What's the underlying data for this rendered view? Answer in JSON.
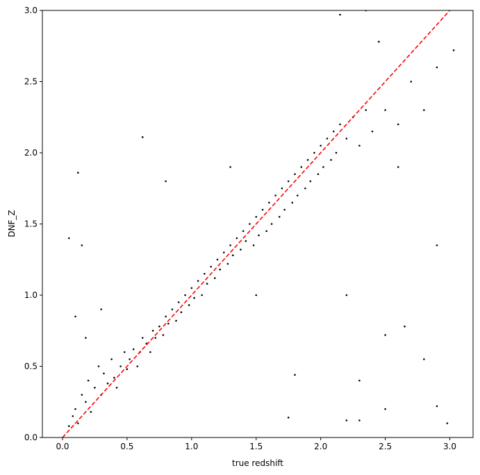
{
  "chart_data": {
    "type": "scatter",
    "x_label": "true redshift",
    "y_label": "DNF_Z",
    "xlim": [
      -0.156,
      3.18
    ],
    "ylim": [
      0,
      3
    ],
    "xticks": [
      {
        "value": 0,
        "label": "0.0"
      },
      0.5,
      {
        "value": 1,
        "label": "1.0"
      },
      1.5,
      {
        "value": 2,
        "label": "2.0"
      },
      2.5,
      {
        "value": 3,
        "label": "3.0"
      }
    ],
    "yticks": [
      {
        "value": 0,
        "label": "0.0"
      },
      0.5,
      {
        "value": 1,
        "label": "1.0"
      },
      1.5,
      {
        "value": 2,
        "label": "2.0"
      },
      2.5,
      {
        "value": 3,
        "label": "3.0"
      }
    ],
    "color": "#000000",
    "x": [
      0.05,
      0.08,
      0.1,
      0.12,
      0.15,
      0.18,
      0.2,
      0.22,
      0.25,
      0.28,
      0.3,
      0.32,
      0.35,
      0.38,
      0.4,
      0.42,
      0.45,
      0.48,
      0.5,
      0.52,
      0.55,
      0.58,
      0.6,
      0.62,
      0.65,
      0.68,
      0.7,
      0.72,
      0.75,
      0.78,
      0.8,
      0.82,
      0.85,
      0.88,
      0.9,
      0.92,
      0.95,
      0.98,
      1.0,
      1.02,
      1.05,
      1.08,
      1.1,
      1.12,
      1.15,
      1.18,
      1.2,
      1.22,
      1.25,
      1.28,
      1.3,
      1.32,
      1.35,
      1.38,
      1.4,
      1.42,
      1.45,
      1.48,
      1.5,
      1.52,
      1.55,
      1.58,
      1.6,
      1.62,
      1.65,
      1.68,
      1.7,
      1.72,
      1.75,
      1.78,
      1.8,
      1.82,
      1.85,
      1.88,
      1.9,
      1.92,
      1.95,
      1.98,
      2.0,
      2.02,
      2.05,
      2.08,
      2.1,
      2.12,
      2.15,
      2.2,
      2.25,
      2.3,
      2.35,
      2.4,
      2.5,
      2.6,
      2.7,
      2.8,
      2.9,
      3.03,
      0.12,
      0.05,
      0.15,
      0.62,
      0.1,
      0.18,
      0.3,
      0.8,
      1.3,
      2.15,
      2.35,
      2.45,
      2.2,
      2.3,
      2.2,
      1.75,
      2.5,
      2.8,
      2.98,
      2.9,
      2.5,
      2.3,
      2.65,
      2.9,
      1.8,
      1.5,
      2.6
    ],
    "values": [
      0.08,
      0.15,
      0.2,
      0.1,
      0.3,
      0.25,
      0.4,
      0.18,
      0.35,
      0.5,
      0.3,
      0.45,
      0.38,
      0.55,
      0.42,
      0.35,
      0.5,
      0.6,
      0.48,
      0.55,
      0.62,
      0.5,
      0.6,
      0.7,
      0.66,
      0.6,
      0.75,
      0.7,
      0.78,
      0.72,
      0.85,
      0.8,
      0.9,
      0.82,
      0.95,
      0.88,
      1.0,
      0.93,
      1.05,
      0.98,
      1.1,
      1.0,
      1.15,
      1.08,
      1.2,
      1.12,
      1.25,
      1.18,
      1.3,
      1.22,
      1.35,
      1.28,
      1.4,
      1.32,
      1.45,
      1.38,
      1.5,
      1.35,
      1.55,
      1.42,
      1.6,
      1.45,
      1.65,
      1.5,
      1.7,
      1.55,
      1.75,
      1.6,
      1.8,
      1.65,
      1.85,
      1.7,
      1.9,
      1.75,
      1.95,
      1.8,
      2.0,
      1.85,
      2.05,
      1.9,
      2.1,
      1.95,
      2.15,
      2.0,
      2.2,
      2.1,
      2.25,
      2.05,
      2.3,
      2.15,
      2.3,
      2.2,
      2.5,
      2.3,
      2.6,
      2.72,
      1.86,
      1.4,
      1.35,
      2.11,
      0.85,
      0.7,
      0.9,
      1.8,
      1.9,
      2.97,
      3.0,
      2.78,
      1.0,
      0.4,
      0.12,
      0.14,
      0.2,
      0.55,
      0.1,
      0.22,
      0.72,
      0.12,
      0.78,
      1.35,
      0.44,
      1.0,
      1.9
    ],
    "reference_line": {
      "x": [
        0,
        3
      ],
      "values": [
        0,
        3
      ],
      "color": "#ff0000",
      "dashed": true
    }
  }
}
